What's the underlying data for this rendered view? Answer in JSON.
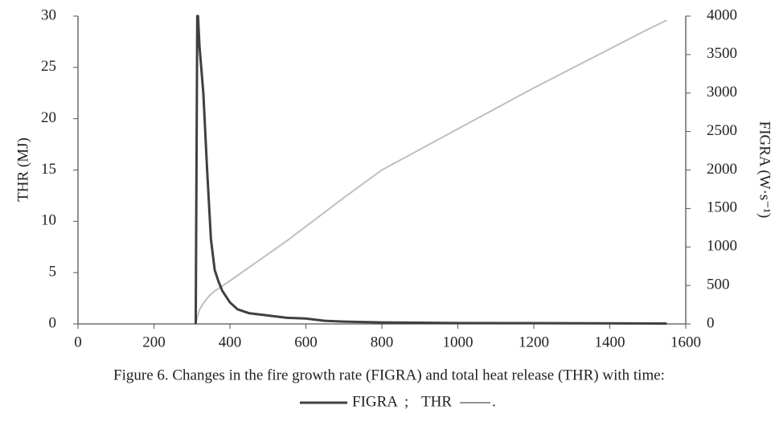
{
  "chart_data": {
    "type": "line",
    "caption": "Figure 6. Changes in the fire growth rate (FIGRA) and total heat release (THR) with time:",
    "ylabel": "THR (MJ)",
    "y2label": "FIGRA (W·s⁻¹)",
    "legend_separator": ";",
    "legend_end": ".",
    "xlim": [
      0,
      1600
    ],
    "xticks": [
      0,
      200,
      400,
      600,
      800,
      1000,
      1200,
      1400,
      1600
    ],
    "ylim": [
      0,
      30
    ],
    "yticks": [
      0,
      5,
      10,
      15,
      20,
      25,
      30
    ],
    "y2lim": [
      0,
      4000
    ],
    "y2ticks": [
      0,
      500,
      1000,
      1500,
      2000,
      2500,
      3000,
      3500,
      4000
    ],
    "series": [
      {
        "name": "FIGRA",
        "color": "#404040",
        "axis": "y2",
        "x": [
          310,
          311,
          314,
          316,
          320,
          330,
          340,
          350,
          360,
          370,
          380,
          400,
          420,
          450,
          500,
          550,
          600,
          650,
          700,
          800,
          900,
          1000,
          1200,
          1400,
          1550
        ],
        "values": [
          0,
          1050,
          4000,
          4000,
          3600,
          3000,
          2000,
          1100,
          700,
          550,
          430,
          280,
          190,
          140,
          110,
          80,
          70,
          40,
          30,
          20,
          15,
          12,
          10,
          8,
          5
        ]
      },
      {
        "name": "THR",
        "color": "#bfbfbf",
        "x": [
          310,
          315,
          320,
          330,
          340,
          350,
          360,
          380,
          400,
          450,
          500,
          550,
          600,
          700,
          800,
          900,
          1000,
          1100,
          1200,
          1300,
          1400,
          1500,
          1550
        ],
        "values": [
          0,
          0.8,
          1.4,
          2.0,
          2.5,
          2.9,
          3.2,
          3.7,
          4.2,
          5.5,
          6.8,
          8.1,
          9.5,
          12.3,
          15.0,
          17.0,
          19.0,
          21.0,
          23.0,
          24.9,
          26.8,
          28.7,
          29.6
        ]
      }
    ]
  }
}
